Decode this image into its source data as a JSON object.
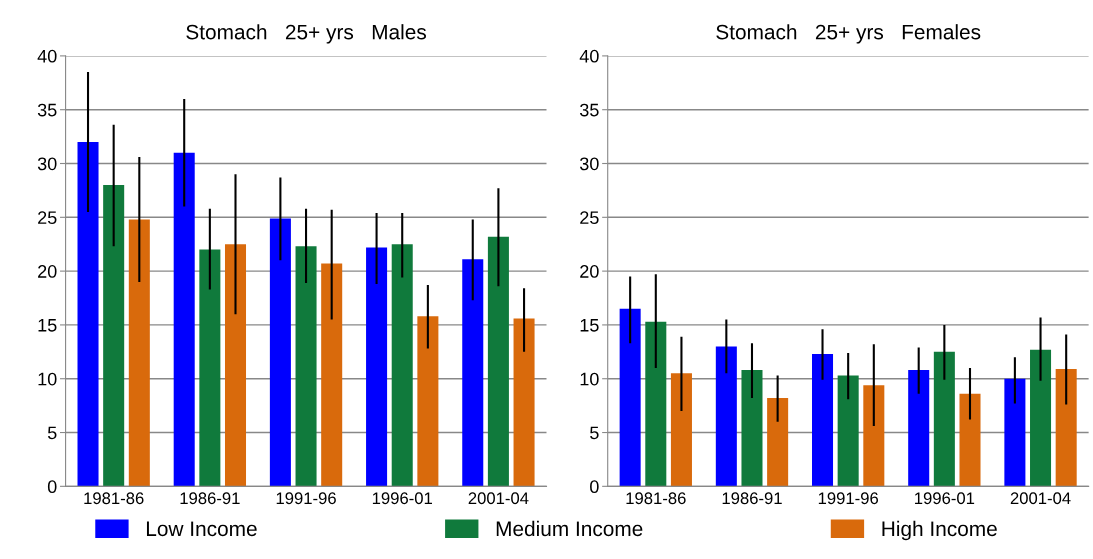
{
  "chart_data": [
    {
      "type": "bar",
      "title": "Stomach   25+ yrs   Males",
      "categories": [
        "1981-86",
        "1986-91",
        "1991-96",
        "1996-01",
        "2001-04"
      ],
      "ylim": [
        0,
        40
      ],
      "yticks": [
        0,
        5,
        10,
        15,
        20,
        25,
        30,
        35,
        40
      ],
      "grid": "y",
      "legend": "bottom",
      "series": [
        {
          "name": "Low Income",
          "color": "#0000ff",
          "values": [
            32,
            31,
            24.9,
            22.2,
            21.1
          ],
          "errors": [
            [
              25.5,
              38.5
            ],
            [
              26,
              36
            ],
            [
              21,
              28.7
            ],
            [
              18.8,
              25.4
            ],
            [
              17.3,
              24.8
            ]
          ]
        },
        {
          "name": "Medium Income",
          "color": "#107a3c",
          "values": [
            28,
            22,
            22.3,
            22.5,
            23.2
          ],
          "errors": [
            [
              22.3,
              33.6
            ],
            [
              18.3,
              25.8
            ],
            [
              18.9,
              25.8
            ],
            [
              19.4,
              25.4
            ],
            [
              18.6,
              27.7
            ]
          ]
        },
        {
          "name": "High Income",
          "color": "#d96a0c",
          "values": [
            24.8,
            22.5,
            20.7,
            15.8,
            15.6
          ],
          "errors": [
            [
              19,
              30.6
            ],
            [
              16,
              29
            ],
            [
              15.5,
              25.7
            ],
            [
              12.8,
              18.7
            ],
            [
              12.5,
              18.4
            ]
          ]
        }
      ]
    },
    {
      "type": "bar",
      "title": "Stomach   25+ yrs   Females",
      "categories": [
        "1981-86",
        "1986-91",
        "1991-96",
        "1996-01",
        "2001-04"
      ],
      "ylim": [
        0,
        40
      ],
      "yticks": [
        0,
        5,
        10,
        15,
        20,
        25,
        30,
        35,
        40
      ],
      "grid": "y",
      "series": [
        {
          "color": "#0000ff",
          "values": [
            16.5,
            13,
            12.3,
            10.8,
            10
          ],
          "errors": [
            [
              13.3,
              19.5
            ],
            [
              10.5,
              15.5
            ],
            [
              9.9,
              14.6
            ],
            [
              8.6,
              12.9
            ],
            [
              7.7,
              12
            ]
          ]
        },
        {
          "color": "#107a3c",
          "values": [
            15.3,
            10.8,
            10.3,
            12.5,
            12.7
          ],
          "errors": [
            [
              11,
              19.7
            ],
            [
              8.2,
              13.3
            ],
            [
              8.1,
              12.4
            ],
            [
              9.9,
              15
            ],
            [
              9.8,
              15.7
            ]
          ]
        },
        {
          "color": "#d96a0c",
          "values": [
            10.5,
            8.2,
            9.4,
            8.6,
            10.9
          ],
          "errors": [
            [
              7,
              13.9
            ],
            [
              6,
              10.3
            ],
            [
              5.6,
              13.2
            ],
            [
              6.2,
              11
            ],
            [
              7.6,
              14.1
            ]
          ]
        }
      ]
    }
  ]
}
